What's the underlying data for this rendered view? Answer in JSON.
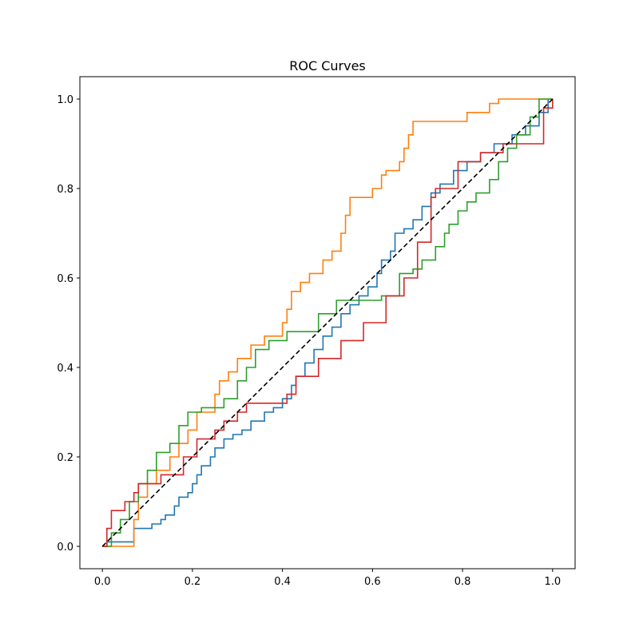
{
  "chart_data": {
    "type": "line",
    "title": "ROC Curves",
    "xlabel": "",
    "ylabel": "",
    "xlim": [
      -0.05,
      1.05
    ],
    "ylim": [
      -0.05,
      1.05
    ],
    "xticks": [
      "0.0",
      "0.2",
      "0.4",
      "0.6",
      "0.8",
      "1.0"
    ],
    "yticks": [
      "0.0",
      "0.2",
      "0.4",
      "0.6",
      "0.8",
      "1.0"
    ],
    "grid": false,
    "legend": "none",
    "step": true,
    "series": [
      {
        "color": "#1f77b4",
        "points": [
          [
            0,
            0
          ],
          [
            0.01,
            0
          ],
          [
            0.01,
            0.01
          ],
          [
            0.07,
            0.01
          ],
          [
            0.07,
            0.04
          ],
          [
            0.11,
            0.04
          ],
          [
            0.11,
            0.05
          ],
          [
            0.13,
            0.05
          ],
          [
            0.13,
            0.06
          ],
          [
            0.14,
            0.06
          ],
          [
            0.14,
            0.07
          ],
          [
            0.16,
            0.07
          ],
          [
            0.16,
            0.09
          ],
          [
            0.17,
            0.09
          ],
          [
            0.17,
            0.11
          ],
          [
            0.19,
            0.11
          ],
          [
            0.19,
            0.12
          ],
          [
            0.2,
            0.12
          ],
          [
            0.2,
            0.14
          ],
          [
            0.21,
            0.14
          ],
          [
            0.21,
            0.16
          ],
          [
            0.22,
            0.16
          ],
          [
            0.22,
            0.18
          ],
          [
            0.24,
            0.18
          ],
          [
            0.24,
            0.2
          ],
          [
            0.25,
            0.2
          ],
          [
            0.25,
            0.22
          ],
          [
            0.27,
            0.22
          ],
          [
            0.27,
            0.24
          ],
          [
            0.29,
            0.24
          ],
          [
            0.29,
            0.25
          ],
          [
            0.31,
            0.25
          ],
          [
            0.31,
            0.26
          ],
          [
            0.33,
            0.26
          ],
          [
            0.33,
            0.28
          ],
          [
            0.36,
            0.28
          ],
          [
            0.36,
            0.3
          ],
          [
            0.38,
            0.3
          ],
          [
            0.38,
            0.31
          ],
          [
            0.4,
            0.31
          ],
          [
            0.4,
            0.33
          ],
          [
            0.42,
            0.33
          ],
          [
            0.42,
            0.36
          ],
          [
            0.43,
            0.36
          ],
          [
            0.43,
            0.38
          ],
          [
            0.45,
            0.38
          ],
          [
            0.45,
            0.41
          ],
          [
            0.47,
            0.41
          ],
          [
            0.47,
            0.44
          ],
          [
            0.49,
            0.44
          ],
          [
            0.49,
            0.47
          ],
          [
            0.51,
            0.47
          ],
          [
            0.51,
            0.49
          ],
          [
            0.53,
            0.49
          ],
          [
            0.53,
            0.52
          ],
          [
            0.55,
            0.52
          ],
          [
            0.55,
            0.54
          ],
          [
            0.57,
            0.54
          ],
          [
            0.57,
            0.56
          ],
          [
            0.59,
            0.56
          ],
          [
            0.59,
            0.58
          ],
          [
            0.61,
            0.58
          ],
          [
            0.61,
            0.61
          ],
          [
            0.62,
            0.61
          ],
          [
            0.62,
            0.64
          ],
          [
            0.64,
            0.64
          ],
          [
            0.64,
            0.66
          ],
          [
            0.65,
            0.66
          ],
          [
            0.65,
            0.7
          ],
          [
            0.67,
            0.7
          ],
          [
            0.67,
            0.71
          ],
          [
            0.69,
            0.71
          ],
          [
            0.69,
            0.73
          ],
          [
            0.71,
            0.73
          ],
          [
            0.71,
            0.76
          ],
          [
            0.73,
            0.76
          ],
          [
            0.73,
            0.79
          ],
          [
            0.75,
            0.79
          ],
          [
            0.75,
            0.81
          ],
          [
            0.78,
            0.81
          ],
          [
            0.78,
            0.84
          ],
          [
            0.81,
            0.84
          ],
          [
            0.81,
            0.86
          ],
          [
            0.84,
            0.86
          ],
          [
            0.84,
            0.88
          ],
          [
            0.87,
            0.88
          ],
          [
            0.87,
            0.9
          ],
          [
            0.91,
            0.9
          ],
          [
            0.91,
            0.92
          ],
          [
            0.94,
            0.92
          ],
          [
            0.94,
            0.94
          ],
          [
            0.97,
            0.94
          ],
          [
            0.97,
            0.97
          ],
          [
            0.99,
            0.97
          ],
          [
            0.99,
            1.0
          ],
          [
            1.0,
            1.0
          ]
        ]
      },
      {
        "color": "#ff7f0e",
        "points": [
          [
            0,
            0
          ],
          [
            0.02,
            0
          ],
          [
            0.02,
            0
          ],
          [
            0.07,
            0
          ],
          [
            0.07,
            0.06
          ],
          [
            0.08,
            0.06
          ],
          [
            0.08,
            0.11
          ],
          [
            0.1,
            0.11
          ],
          [
            0.1,
            0.14
          ],
          [
            0.12,
            0.14
          ],
          [
            0.12,
            0.17
          ],
          [
            0.15,
            0.17
          ],
          [
            0.15,
            0.2
          ],
          [
            0.17,
            0.2
          ],
          [
            0.17,
            0.23
          ],
          [
            0.19,
            0.23
          ],
          [
            0.19,
            0.26
          ],
          [
            0.21,
            0.26
          ],
          [
            0.21,
            0.3
          ],
          [
            0.25,
            0.3
          ],
          [
            0.25,
            0.34
          ],
          [
            0.26,
            0.34
          ],
          [
            0.26,
            0.37
          ],
          [
            0.28,
            0.37
          ],
          [
            0.28,
            0.39
          ],
          [
            0.3,
            0.39
          ],
          [
            0.3,
            0.42
          ],
          [
            0.33,
            0.42
          ],
          [
            0.33,
            0.45
          ],
          [
            0.36,
            0.45
          ],
          [
            0.36,
            0.47
          ],
          [
            0.4,
            0.47
          ],
          [
            0.4,
            0.5
          ],
          [
            0.41,
            0.5
          ],
          [
            0.41,
            0.53
          ],
          [
            0.42,
            0.53
          ],
          [
            0.42,
            0.57
          ],
          [
            0.44,
            0.57
          ],
          [
            0.44,
            0.59
          ],
          [
            0.46,
            0.59
          ],
          [
            0.46,
            0.61
          ],
          [
            0.49,
            0.61
          ],
          [
            0.49,
            0.64
          ],
          [
            0.51,
            0.64
          ],
          [
            0.51,
            0.66
          ],
          [
            0.53,
            0.66
          ],
          [
            0.53,
            0.7
          ],
          [
            0.54,
            0.7
          ],
          [
            0.54,
            0.74
          ],
          [
            0.55,
            0.74
          ],
          [
            0.55,
            0.78
          ],
          [
            0.6,
            0.78
          ],
          [
            0.6,
            0.8
          ],
          [
            0.62,
            0.8
          ],
          [
            0.62,
            0.83
          ],
          [
            0.63,
            0.83
          ],
          [
            0.63,
            0.84
          ],
          [
            0.66,
            0.84
          ],
          [
            0.66,
            0.86
          ],
          [
            0.67,
            0.86
          ],
          [
            0.67,
            0.89
          ],
          [
            0.68,
            0.89
          ],
          [
            0.68,
            0.92
          ],
          [
            0.69,
            0.92
          ],
          [
            0.69,
            0.95
          ],
          [
            0.81,
            0.95
          ],
          [
            0.81,
            0.97
          ],
          [
            0.86,
            0.97
          ],
          [
            0.86,
            0.99
          ],
          [
            0.88,
            0.99
          ],
          [
            0.88,
            1.0
          ],
          [
            1.0,
            1.0
          ]
        ]
      },
      {
        "color": "#2ca02c",
        "points": [
          [
            0,
            0
          ],
          [
            0.02,
            0
          ],
          [
            0.02,
            0.03
          ],
          [
            0.04,
            0.03
          ],
          [
            0.04,
            0.06
          ],
          [
            0.06,
            0.06
          ],
          [
            0.06,
            0.1
          ],
          [
            0.08,
            0.1
          ],
          [
            0.08,
            0.14
          ],
          [
            0.1,
            0.14
          ],
          [
            0.1,
            0.17
          ],
          [
            0.12,
            0.17
          ],
          [
            0.12,
            0.21
          ],
          [
            0.15,
            0.21
          ],
          [
            0.15,
            0.23
          ],
          [
            0.17,
            0.23
          ],
          [
            0.17,
            0.27
          ],
          [
            0.19,
            0.27
          ],
          [
            0.19,
            0.3
          ],
          [
            0.22,
            0.3
          ],
          [
            0.22,
            0.31
          ],
          [
            0.27,
            0.31
          ],
          [
            0.27,
            0.33
          ],
          [
            0.3,
            0.33
          ],
          [
            0.3,
            0.37
          ],
          [
            0.32,
            0.37
          ],
          [
            0.32,
            0.4
          ],
          [
            0.34,
            0.4
          ],
          [
            0.34,
            0.44
          ],
          [
            0.37,
            0.44
          ],
          [
            0.37,
            0.46
          ],
          [
            0.41,
            0.46
          ],
          [
            0.41,
            0.48
          ],
          [
            0.48,
            0.48
          ],
          [
            0.48,
            0.52
          ],
          [
            0.52,
            0.52
          ],
          [
            0.52,
            0.55
          ],
          [
            0.62,
            0.55
          ],
          [
            0.62,
            0.56
          ],
          [
            0.66,
            0.56
          ],
          [
            0.66,
            0.61
          ],
          [
            0.69,
            0.61
          ],
          [
            0.69,
            0.62
          ],
          [
            0.71,
            0.62
          ],
          [
            0.71,
            0.64
          ],
          [
            0.74,
            0.64
          ],
          [
            0.74,
            0.67
          ],
          [
            0.76,
            0.67
          ],
          [
            0.76,
            0.7
          ],
          [
            0.77,
            0.7
          ],
          [
            0.77,
            0.72
          ],
          [
            0.79,
            0.72
          ],
          [
            0.79,
            0.75
          ],
          [
            0.81,
            0.75
          ],
          [
            0.81,
            0.77
          ],
          [
            0.83,
            0.77
          ],
          [
            0.83,
            0.79
          ],
          [
            0.86,
            0.79
          ],
          [
            0.86,
            0.82
          ],
          [
            0.88,
            0.82
          ],
          [
            0.88,
            0.86
          ],
          [
            0.9,
            0.86
          ],
          [
            0.9,
            0.89
          ],
          [
            0.92,
            0.89
          ],
          [
            0.92,
            0.92
          ],
          [
            0.95,
            0.92
          ],
          [
            0.95,
            0.96
          ],
          [
            0.97,
            0.96
          ],
          [
            0.97,
            1.0
          ],
          [
            1.0,
            1.0
          ]
        ]
      },
      {
        "color": "#d62728",
        "points": [
          [
            0,
            0
          ],
          [
            0.01,
            0
          ],
          [
            0.01,
            0.04
          ],
          [
            0.02,
            0.04
          ],
          [
            0.02,
            0.08
          ],
          [
            0.05,
            0.08
          ],
          [
            0.05,
            0.1
          ],
          [
            0.07,
            0.1
          ],
          [
            0.07,
            0.12
          ],
          [
            0.08,
            0.12
          ],
          [
            0.08,
            0.14
          ],
          [
            0.13,
            0.14
          ],
          [
            0.13,
            0.16
          ],
          [
            0.18,
            0.16
          ],
          [
            0.18,
            0.2
          ],
          [
            0.21,
            0.2
          ],
          [
            0.21,
            0.24
          ],
          [
            0.25,
            0.24
          ],
          [
            0.25,
            0.26
          ],
          [
            0.27,
            0.26
          ],
          [
            0.27,
            0.28
          ],
          [
            0.3,
            0.28
          ],
          [
            0.3,
            0.3
          ],
          [
            0.32,
            0.3
          ],
          [
            0.32,
            0.32
          ],
          [
            0.41,
            0.32
          ],
          [
            0.41,
            0.34
          ],
          [
            0.43,
            0.34
          ],
          [
            0.43,
            0.38
          ],
          [
            0.48,
            0.38
          ],
          [
            0.48,
            0.42
          ],
          [
            0.53,
            0.42
          ],
          [
            0.53,
            0.46
          ],
          [
            0.58,
            0.46
          ],
          [
            0.58,
            0.5
          ],
          [
            0.63,
            0.5
          ],
          [
            0.63,
            0.56
          ],
          [
            0.67,
            0.56
          ],
          [
            0.67,
            0.6
          ],
          [
            0.7,
            0.6
          ],
          [
            0.7,
            0.68
          ],
          [
            0.73,
            0.68
          ],
          [
            0.73,
            0.78
          ],
          [
            0.74,
            0.78
          ],
          [
            0.74,
            0.8
          ],
          [
            0.79,
            0.8
          ],
          [
            0.79,
            0.86
          ],
          [
            0.84,
            0.86
          ],
          [
            0.84,
            0.88
          ],
          [
            0.89,
            0.88
          ],
          [
            0.89,
            0.9
          ],
          [
            0.98,
            0.9
          ],
          [
            0.98,
            0.98
          ],
          [
            1.0,
            0.98
          ],
          [
            1.0,
            1.0
          ]
        ]
      },
      {
        "color": "#000000",
        "dashed": true,
        "points": [
          [
            0,
            0
          ],
          [
            1,
            1
          ]
        ]
      }
    ]
  }
}
